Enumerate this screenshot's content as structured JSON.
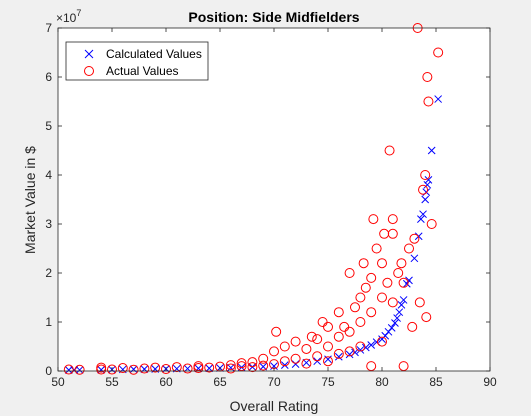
{
  "chart_data": {
    "type": "scatter",
    "title": "Position: Side Midfielders",
    "xlabel": "Overall Rating",
    "ylabel": "Market Value in $",
    "xlim": [
      50,
      90
    ],
    "ylim": [
      0,
      70000000
    ],
    "y_exponent_label": "×10",
    "y_exponent_power": "7",
    "x_ticks": [
      50,
      55,
      60,
      65,
      70,
      75,
      80,
      85,
      90
    ],
    "x_tick_labels": [
      "50",
      "55",
      "60",
      "65",
      "70",
      "75",
      "80",
      "85",
      "90"
    ],
    "y_ticks": [
      0,
      10000000,
      20000000,
      30000000,
      40000000,
      50000000,
      60000000,
      70000000
    ],
    "y_tick_labels": [
      "0",
      "1",
      "2",
      "3",
      "4",
      "5",
      "6",
      "7"
    ],
    "legend": {
      "location": "top-left",
      "entries": [
        {
          "name": "Calculated Values",
          "marker": "x",
          "color": "#0000ff"
        },
        {
          "name": "Actual Values",
          "marker": "o",
          "color": "#ff0000"
        }
      ]
    },
    "series": [
      {
        "name": "Calculated Values",
        "marker": "x",
        "color": "#0000ff",
        "points": [
          [
            51,
            200000
          ],
          [
            51.5,
            210000
          ],
          [
            52,
            220000
          ],
          [
            54,
            260000
          ],
          [
            55,
            290000
          ],
          [
            56,
            320000
          ],
          [
            57,
            350000
          ],
          [
            58,
            380000
          ],
          [
            59,
            410000
          ],
          [
            60,
            440000
          ],
          [
            61,
            470000
          ],
          [
            62,
            500000
          ],
          [
            63,
            530000
          ],
          [
            64,
            560000
          ],
          [
            65,
            620000
          ],
          [
            66,
            680000
          ],
          [
            67,
            750000
          ],
          [
            68,
            820000
          ],
          [
            69,
            900000
          ],
          [
            70,
            1000000
          ],
          [
            71,
            1200000
          ],
          [
            72,
            1400000
          ],
          [
            73,
            1700000
          ],
          [
            74,
            2000000
          ],
          [
            75,
            2400000
          ],
          [
            76,
            2900000
          ],
          [
            77,
            3400000
          ],
          [
            77.5,
            3800000
          ],
          [
            78,
            4300000
          ],
          [
            78.5,
            4800000
          ],
          [
            79,
            5300000
          ],
          [
            79.5,
            5900000
          ],
          [
            80,
            6500000
          ],
          [
            80.3,
            7200000
          ],
          [
            80.6,
            8000000
          ],
          [
            80.9,
            8800000
          ],
          [
            81.2,
            9800000
          ],
          [
            81.4,
            10800000
          ],
          [
            81.6,
            12000000
          ],
          [
            81.8,
            13500000
          ],
          [
            82,
            14500000
          ],
          [
            82.3,
            17800000
          ],
          [
            82.5,
            18500000
          ],
          [
            83,
            23000000
          ],
          [
            83.4,
            27500000
          ],
          [
            83.6,
            31000000
          ],
          [
            83.8,
            32000000
          ],
          [
            84,
            35000000
          ],
          [
            84.1,
            36500000
          ],
          [
            84.2,
            38000000
          ],
          [
            84.3,
            39000000
          ],
          [
            84.6,
            45000000
          ],
          [
            85.2,
            55500000
          ]
        ]
      },
      {
        "name": "Actual Values",
        "marker": "o",
        "color": "#ff0000",
        "points": [
          [
            51,
            300000
          ],
          [
            52,
            250000
          ],
          [
            54,
            300000
          ],
          [
            54,
            700000
          ],
          [
            55,
            300000
          ],
          [
            56,
            600000
          ],
          [
            57,
            250000
          ],
          [
            58,
            500000
          ],
          [
            59,
            700000
          ],
          [
            60,
            400000
          ],
          [
            61,
            800000
          ],
          [
            62,
            500000
          ],
          [
            63,
            600000
          ],
          [
            63,
            1000000
          ],
          [
            64,
            700000
          ],
          [
            65,
            900000
          ],
          [
            66,
            500000
          ],
          [
            66,
            1200000
          ],
          [
            67,
            1000000
          ],
          [
            67,
            1600000
          ],
          [
            68,
            800000
          ],
          [
            68,
            1800000
          ],
          [
            69,
            1100000
          ],
          [
            69,
            2500000
          ],
          [
            70,
            1400000
          ],
          [
            70,
            4000000
          ],
          [
            70.2,
            8000000
          ],
          [
            71,
            2000000
          ],
          [
            71,
            5000000
          ],
          [
            72,
            2500000
          ],
          [
            72,
            6000000
          ],
          [
            73,
            1500000
          ],
          [
            73,
            4500000
          ],
          [
            73.5,
            7000000
          ],
          [
            74,
            3000000
          ],
          [
            74,
            6500000
          ],
          [
            74.5,
            10000000
          ],
          [
            75,
            2000000
          ],
          [
            75,
            5000000
          ],
          [
            75,
            9000000
          ],
          [
            76,
            3500000
          ],
          [
            76,
            7000000
          ],
          [
            76,
            12000000
          ],
          [
            76.5,
            9000000
          ],
          [
            77,
            4000000
          ],
          [
            77,
            8000000
          ],
          [
            77,
            20000000
          ],
          [
            77.5,
            13000000
          ],
          [
            78,
            5000000
          ],
          [
            78,
            10000000
          ],
          [
            78,
            15000000
          ],
          [
            78.3,
            22000000
          ],
          [
            78.5,
            17000000
          ],
          [
            79,
            1000000
          ],
          [
            79,
            12000000
          ],
          [
            79,
            19000000
          ],
          [
            79.2,
            31000000
          ],
          [
            79.5,
            25000000
          ],
          [
            80,
            6000000
          ],
          [
            80,
            15000000
          ],
          [
            80,
            22000000
          ],
          [
            80.2,
            28000000
          ],
          [
            80.5,
            18000000
          ],
          [
            80.7,
            45000000
          ],
          [
            81,
            14000000
          ],
          [
            81,
            28000000
          ],
          [
            81,
            31000000
          ],
          [
            81.5,
            20000000
          ],
          [
            81.8,
            22000000
          ],
          [
            82,
            1000000
          ],
          [
            82,
            18000000
          ],
          [
            82.5,
            25000000
          ],
          [
            82.8,
            9000000
          ],
          [
            83,
            27000000
          ],
          [
            83.3,
            70000000
          ],
          [
            83.5,
            14000000
          ],
          [
            83.8,
            37000000
          ],
          [
            84,
            40000000
          ],
          [
            84.1,
            11000000
          ],
          [
            84.2,
            60000000
          ],
          [
            84.3,
            55000000
          ],
          [
            84.6,
            30000000
          ],
          [
            85.2,
            65000000
          ]
        ]
      }
    ]
  }
}
